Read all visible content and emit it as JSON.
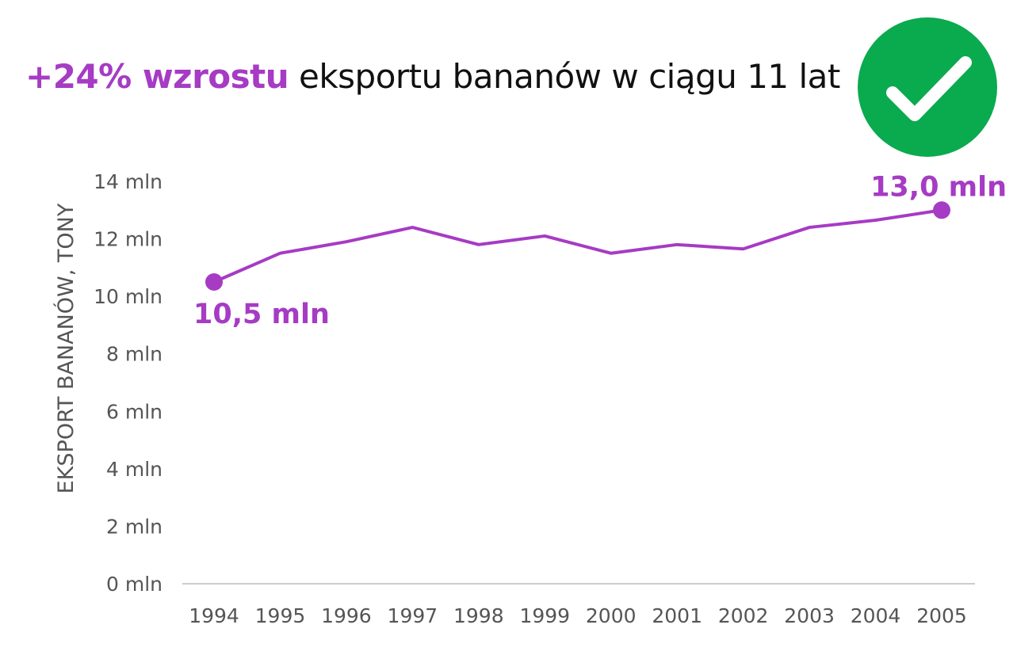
{
  "header": {
    "title_highlight": "+24% wzrostu",
    "title_rest": " eksportu bananów w ciągu 11 lat"
  },
  "badge": {
    "icon": "checkmark-icon",
    "color": "#0aaa4f"
  },
  "colors": {
    "accent": "#a63bc4",
    "axis": "#cccccc",
    "text": "#555555"
  },
  "chart_data": {
    "type": "line",
    "x": [
      1994,
      1995,
      1996,
      1997,
      1998,
      1999,
      2000,
      2001,
      2002,
      2003,
      2004,
      2005
    ],
    "x_tick_labels": [
      "1994",
      "1995",
      "1996",
      "1997",
      "1998",
      "1999",
      "2000",
      "2001",
      "2002",
      "2003",
      "2004",
      "2005"
    ],
    "series": [
      {
        "values": [
          10.5,
          11.5,
          11.9,
          12.4,
          11.8,
          12.1,
          11.5,
          11.8,
          11.65,
          12.4,
          12.65,
          13.0
        ]
      }
    ],
    "ylabel": "EKSPORT BANANÓW, TONY",
    "ylim": [
      0,
      14
    ],
    "y_ticks": [
      0,
      2,
      4,
      6,
      8,
      10,
      12,
      14
    ],
    "y_tick_labels": [
      "0 mln",
      "2 mln",
      "4 mln",
      "6 mln",
      "8 mln",
      "10 mln",
      "12 mln",
      "14 mln"
    ],
    "grid": false,
    "annotations": [
      {
        "x": 1994,
        "y": 10.5,
        "label": "10,5 mln",
        "placement": "below"
      },
      {
        "x": 2005,
        "y": 13.0,
        "label": "13,0 mln",
        "placement": "above"
      }
    ]
  }
}
